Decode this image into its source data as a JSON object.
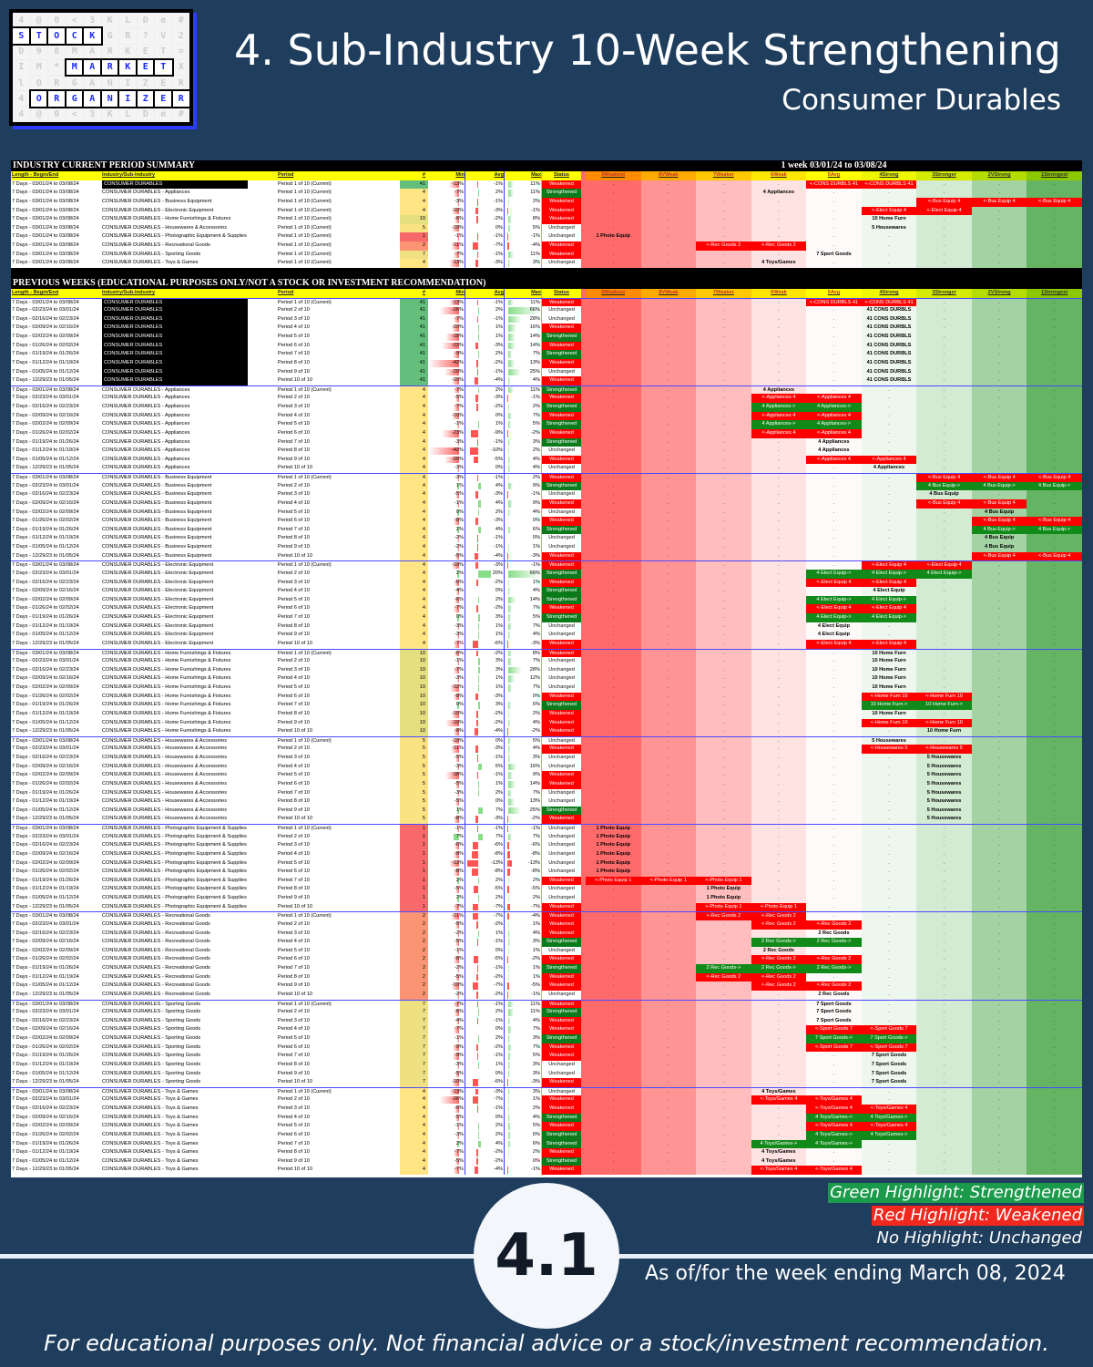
{
  "logo": {
    "words": [
      "STOCK",
      "MARKET",
      "ORGANIZER"
    ]
  },
  "header": {
    "title": "4. Sub-Industry 10-Week Strengthening",
    "subtitle": "Consumer Durables"
  },
  "sheet": {
    "summary_title": "INDUSTRY CURRENT PERIOD SUMMARY",
    "week_label": "1 week 03/01/24 to 03/08/24",
    "previous_title": "PREVIOUS WEEKS (EDUCATIONAL PURPOSES ONLY/NOT A STOCK OR INVESTMENT RECOMMENDATION)",
    "columns": [
      "Length - Begin/End",
      "Industry/Sub-Industry",
      "Period",
      "#",
      "Min",
      "Avg",
      "Max",
      "Status"
    ],
    "ranks": [
      "9Weakest",
      "8VWeak",
      "7Weaker",
      "6Weak",
      "5Avg",
      "4Strong",
      "3Stronger",
      "2VStrong",
      "1Strongest"
    ],
    "empty_cell": ".",
    "periods": [
      {
        "dates": "7 Days - 03/01/24 to 03/08/24",
        "label": "Period 1 of 10 (Current)"
      },
      {
        "dates": "7 Days - 02/23/24 to 03/01/24",
        "label": "Period 2 of 10"
      },
      {
        "dates": "7 Days - 02/16/24 to 02/23/24",
        "label": "Period 3 of 10"
      },
      {
        "dates": "7 Days - 02/09/24 to 02/16/24",
        "label": "Period 4 of 10"
      },
      {
        "dates": "7 Days - 02/02/24 to 02/09/24",
        "label": "Period 5 of 10"
      },
      {
        "dates": "7 Days - 01/26/24 to 02/02/24",
        "label": "Period 6 of 10"
      },
      {
        "dates": "7 Days - 01/19/24 to 01/26/24",
        "label": "Period 7 of 10"
      },
      {
        "dates": "7 Days - 01/12/24 to 01/19/24",
        "label": "Period 8 of 10"
      },
      {
        "dates": "7 Days - 01/05/24 to 01/12/24",
        "label": "Period 9 of 10"
      },
      {
        "dates": "7 Days - 12/29/23 to 01/05/24",
        "label": "Period 10 of 10"
      }
    ],
    "status_colors": {
      "Weakened": "#ff0000",
      "Strengthened": "#0a7a1a",
      "Unchanged": "#ffffff"
    },
    "row_fields": [
      "min_pct",
      "avg_pct",
      "max_pct",
      "status",
      "from_rank",
      "to_rank"
    ],
    "groups": [
      {
        "name": "CONSUMER DURABLES",
        "short": "CONS DURBLS",
        "count": 41,
        "count_color": "#63be7b",
        "industry": true,
        "rows": [
          [
            -13,
            -1,
            11,
            "Weakened",
            4,
            5
          ],
          [
            -26,
            2,
            66,
            "Unchanged",
            4,
            4
          ],
          [
            -7,
            -1,
            28,
            "Unchanged",
            4,
            4
          ],
          [
            -10,
            1,
            16,
            "Weakened",
            4,
            4
          ],
          [
            -18,
            1,
            14,
            "Strengthened",
            4,
            4
          ],
          [
            -23,
            -3,
            14,
            "Weakened",
            4,
            4
          ],
          [
            -9,
            2,
            7,
            "Strengthened",
            4,
            4
          ],
          [
            -42,
            -2,
            13,
            "Weakened",
            4,
            4
          ],
          [
            -20,
            -1,
            25,
            "Unchanged",
            4,
            4
          ],
          [
            -10,
            -4,
            4,
            "Weakened",
            4,
            4
          ]
        ]
      },
      {
        "name": "CONSUMER DURABLES - Appliances",
        "short": "Appliances",
        "count": 4,
        "count_color": "#ffe584",
        "rows": [
          [
            -7,
            2,
            11,
            "Strengthened",
            6,
            6
          ],
          [
            -5,
            -3,
            -1,
            "Weakened",
            5,
            6
          ],
          [
            -7,
            -2,
            2,
            "Strengthened",
            6,
            5
          ],
          [
            -10,
            0,
            7,
            "Weakened",
            5,
            6
          ],
          [
            -1,
            1,
            5,
            "Strengthened",
            6,
            5
          ],
          [
            -23,
            -9,
            -2,
            "Weakened",
            5,
            6
          ],
          [
            -3,
            -1,
            3,
            "Strengthened",
            5,
            5
          ],
          [
            -42,
            -10,
            2,
            "Unchanged",
            5,
            5
          ],
          [
            -20,
            -5,
            4,
            "Weakened",
            4,
            5
          ],
          [
            -3,
            0,
            4,
            "Unchanged",
            4,
            4
          ]
        ]
      },
      {
        "name": "CONSUMER DURABLES - Business Equipment",
        "short": "Bus Equip",
        "count": 4,
        "count_color": "#ffe584",
        "rows": [
          [
            -3,
            -1,
            2,
            "Weakened",
            1,
            3
          ],
          [
            1,
            4,
            9,
            "Strengthened",
            3,
            1
          ],
          [
            -5,
            -3,
            -1,
            "Unchanged",
            3,
            3
          ],
          [
            -1,
            4,
            9,
            "Weakened",
            2,
            3
          ],
          [
            0,
            2,
            4,
            "Unchanged",
            2,
            2
          ],
          [
            -8,
            -3,
            0,
            "Weakened",
            1,
            2
          ],
          [
            2,
            4,
            6,
            "Strengthened",
            2,
            1
          ],
          [
            -2,
            -1,
            0,
            "Unchanged",
            2,
            2
          ],
          [
            -2,
            -1,
            1,
            "Unchanged",
            2,
            2
          ],
          [
            -5,
            -4,
            -3,
            "Weakened",
            1,
            2
          ]
        ]
      },
      {
        "name": "CONSUMER DURABLES - Electronic Equipment",
        "short": "Elect Equip",
        "count": 4,
        "count_color": "#ffe584",
        "rows": [
          [
            -10,
            -3,
            -1,
            "Weakened",
            3,
            4
          ],
          [
            2,
            20,
            66,
            "Strengthened",
            5,
            3
          ],
          [
            -6,
            -2,
            1,
            "Weakened",
            4,
            5
          ],
          [
            -4,
            0,
            4,
            "Strengthened",
            4,
            4
          ],
          [
            -6,
            2,
            14,
            "Strengthened",
            5,
            4
          ],
          [
            -7,
            -2,
            7,
            "Weakened",
            4,
            5
          ],
          [
            0,
            3,
            5,
            "Strengthened",
            5,
            4
          ],
          [
            -3,
            1,
            7,
            "Unchanged",
            5,
            5
          ],
          [
            -3,
            1,
            4,
            "Unchanged",
            5,
            5
          ],
          [
            -7,
            -6,
            -3,
            "Weakened",
            4,
            5
          ]
        ]
      },
      {
        "name": "CONSUMER DURABLES - Home Furnishings & Fixtures",
        "short": "Home Furn",
        "count": 10,
        "count_color": "#e6df80",
        "rows": [
          [
            -6,
            -2,
            8,
            "Weakened",
            4,
            4
          ],
          [
            -1,
            3,
            7,
            "Unchanged",
            4,
            4
          ],
          [
            -7,
            3,
            28,
            "Unchanged",
            4,
            4
          ],
          [
            -3,
            1,
            12,
            "Unchanged",
            4,
            4
          ],
          [
            -12,
            1,
            7,
            "Unchanged",
            4,
            4
          ],
          [
            -8,
            -3,
            0,
            "Weakened",
            3,
            4
          ],
          [
            0,
            3,
            6,
            "Strengthened",
            4,
            3
          ],
          [
            -10,
            -2,
            2,
            "Weakened",
            4,
            4
          ],
          [
            -19,
            -2,
            4,
            "Weakened",
            3,
            4
          ],
          [
            -8,
            -4,
            -2,
            "Weakened",
            3,
            3
          ]
        ]
      },
      {
        "name": "CONSUMER DURABLES - Housewares & Accessories",
        "short": "Housewares",
        "count": 5,
        "count_color": "#fbe283",
        "rows": [
          [
            -10,
            0,
            5,
            "Unchanged",
            4,
            4
          ],
          [
            -11,
            -3,
            4,
            "Weakened",
            3,
            4
          ],
          [
            -5,
            -1,
            3,
            "Unchanged",
            3,
            3
          ],
          [
            -3,
            6,
            16,
            "Unchanged",
            3,
            3
          ],
          [
            -18,
            -1,
            9,
            "Weakened",
            3,
            3
          ],
          [
            -5,
            1,
            14,
            "Weakened",
            3,
            3
          ],
          [
            -3,
            2,
            7,
            "Unchanged",
            3,
            3
          ],
          [
            -5,
            0,
            13,
            "Unchanged",
            3,
            3
          ],
          [
            1,
            7,
            25,
            "Strengthened",
            3,
            3
          ],
          [
            -8,
            -3,
            -2,
            "Weakened",
            3,
            3
          ]
        ]
      },
      {
        "name": "CONSUMER DURABLES - Photographic Equipment & Supplies",
        "short": "Photo Equip",
        "count": 1,
        "count_color": "#f8696b",
        "rows": [
          [
            -1,
            -1,
            -1,
            "Unchanged",
            9,
            9
          ],
          [
            7,
            7,
            7,
            "Unchanged",
            9,
            9
          ],
          [
            -6,
            -6,
            -6,
            "Unchanged",
            9,
            9
          ],
          [
            -8,
            -8,
            -8,
            "Unchanged",
            9,
            9
          ],
          [
            -13,
            -13,
            -13,
            "Unchanged",
            9,
            9
          ],
          [
            -8,
            -8,
            -8,
            "Unchanged",
            9,
            9
          ],
          [
            2,
            2,
            2,
            "Weakened",
            7,
            9
          ],
          [
            -5,
            -5,
            -5,
            "Unchanged",
            7,
            7
          ],
          [
            2,
            2,
            2,
            "Unchanged",
            7,
            7
          ],
          [
            -7,
            -7,
            -7,
            "Weakened",
            6,
            7
          ]
        ]
      },
      {
        "name": "CONSUMER DURABLES - Recreational Goods",
        "short": "Rec Goods",
        "count": 2,
        "count_color": "#fa9473",
        "rows": [
          [
            -11,
            -7,
            -4,
            "Weakened",
            6,
            7
          ],
          [
            -5,
            -2,
            1,
            "Weakened",
            5,
            6
          ],
          [
            -2,
            1,
            4,
            "Weakened",
            5,
            5
          ],
          [
            -5,
            -1,
            3,
            "Strengthened",
            6,
            5
          ],
          [
            -1,
            0,
            1,
            "Unchanged",
            6,
            6
          ],
          [
            -8,
            -5,
            -2,
            "Weakened",
            5,
            6
          ],
          [
            -2,
            -1,
            1,
            "Strengthened",
            7,
            5
          ],
          [
            -5,
            -2,
            1,
            "Weakened",
            6,
            7
          ],
          [
            -10,
            -7,
            -5,
            "Weakened",
            5,
            6
          ],
          [
            -2,
            -2,
            -1,
            "Unchanged",
            5,
            5
          ]
        ]
      },
      {
        "name": "CONSUMER DURABLES - Sporting Goods",
        "short": "Sport Goods",
        "count": 7,
        "count_color": "#efe081",
        "rows": [
          [
            -7,
            -1,
            11,
            "Weakened",
            5,
            5
          ],
          [
            -6,
            2,
            11,
            "Strengthened",
            5,
            5
          ],
          [
            -4,
            -1,
            4,
            "Weakened",
            5,
            5
          ],
          [
            -7,
            0,
            7,
            "Weakened",
            4,
            5
          ],
          [
            -1,
            2,
            3,
            "Strengthened",
            5,
            4
          ],
          [
            -9,
            -2,
            7,
            "Weakened",
            4,
            5
          ],
          [
            -9,
            -1,
            5,
            "Weakened",
            4,
            4
          ],
          [
            -3,
            1,
            3,
            "Unchanged",
            4,
            4
          ],
          [
            -5,
            0,
            3,
            "Unchanged",
            4,
            4
          ],
          [
            -10,
            -6,
            -3,
            "Weakened",
            4,
            4
          ]
        ]
      },
      {
        "name": "CONSUMER DURABLES - Toys & Games",
        "short": "Toys/Games",
        "count": 4,
        "count_color": "#ffe584",
        "rows": [
          [
            -13,
            -3,
            3,
            "Unchanged",
            6,
            6
          ],
          [
            -26,
            -7,
            1,
            "Weakened",
            5,
            6
          ],
          [
            -6,
            -1,
            2,
            "Weakened",
            4,
            5
          ],
          [
            -5,
            0,
            4,
            "Strengthened",
            5,
            4
          ],
          [
            -1,
            2,
            5,
            "Weakened",
            4,
            5
          ],
          [
            -3,
            2,
            6,
            "Strengthened",
            5,
            4
          ],
          [
            2,
            4,
            6,
            "Strengthened",
            6,
            5
          ],
          [
            -7,
            -2,
            2,
            "Weakened",
            6,
            6
          ],
          [
            -5,
            -2,
            0,
            "Strengthened",
            6,
            6
          ],
          [
            -7,
            -4,
            -1,
            "Weakened",
            5,
            6
          ]
        ]
      }
    ]
  },
  "legend": {
    "green": "Green Highlight: Strengthened",
    "red": "Red Highlight: Weakened",
    "none": "No Highlight: Unchanged",
    "green_color": "#1a9a4a",
    "red_color": "#f0281e"
  },
  "badge": "4.1",
  "as_of": "As of/for the week ending March 08, 2024",
  "footer": "For educational purposes only. Not financial advice or a stock/investment recommendation."
}
